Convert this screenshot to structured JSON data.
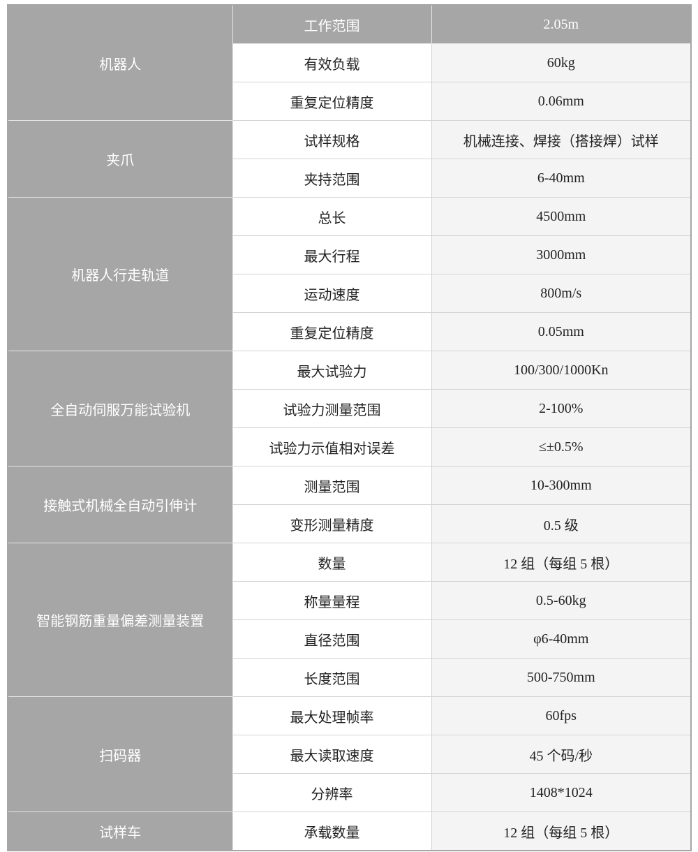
{
  "groups": [
    {
      "name": "机器人",
      "rows": [
        {
          "param": "工作范围",
          "value": "2.05m",
          "header": true
        },
        {
          "param": "有效负载",
          "value": "60kg"
        },
        {
          "param": "重复定位精度",
          "value": "0.06mm"
        }
      ]
    },
    {
      "name": "夹爪",
      "rows": [
        {
          "param": "试样规格",
          "value": "机械连接、焊接（搭接焊）试样"
        },
        {
          "param": "夹持范围",
          "value": "6-40mm"
        }
      ]
    },
    {
      "name": "机器人行走轨道",
      "rows": [
        {
          "param": "总长",
          "value": "4500mm"
        },
        {
          "param": "最大行程",
          "value": "3000mm"
        },
        {
          "param": "运动速度",
          "value": "800m/s"
        },
        {
          "param": "重复定位精度",
          "value": "0.05mm"
        }
      ]
    },
    {
      "name": "全自动伺服万能试验机",
      "rows": [
        {
          "param": "最大试验力",
          "value": "100/300/1000Kn"
        },
        {
          "param": "试验力测量范围",
          "value": "2-100%"
        },
        {
          "param": "试验力示值相对误差",
          "value": "≤±0.5%"
        }
      ]
    },
    {
      "name": "接触式机械全自动引伸计",
      "rows": [
        {
          "param": "测量范围",
          "value": "10-300mm"
        },
        {
          "param": "变形测量精度",
          "value": "0.5 级"
        }
      ]
    },
    {
      "name": "智能钢筋重量偏差测量装置",
      "rows": [
        {
          "param": "数量",
          "value": "12 组（每组 5 根）"
        },
        {
          "param": "称量量程",
          "value": "0.5-60kg"
        },
        {
          "param": "直径范围",
          "value": "φ6-40mm"
        },
        {
          "param": "长度范围",
          "value": "500-750mm"
        }
      ]
    },
    {
      "name": "扫码器",
      "rows": [
        {
          "param": "最大处理帧率",
          "value": "60fps"
        },
        {
          "param": "最大读取速度",
          "value": "45 个码/秒"
        },
        {
          "param": "分辨率",
          "value": "1408*1024"
        }
      ]
    },
    {
      "name": "试样车",
      "rows": [
        {
          "param": "承载数量",
          "value": "12 组（每组 5 根）"
        }
      ]
    }
  ]
}
